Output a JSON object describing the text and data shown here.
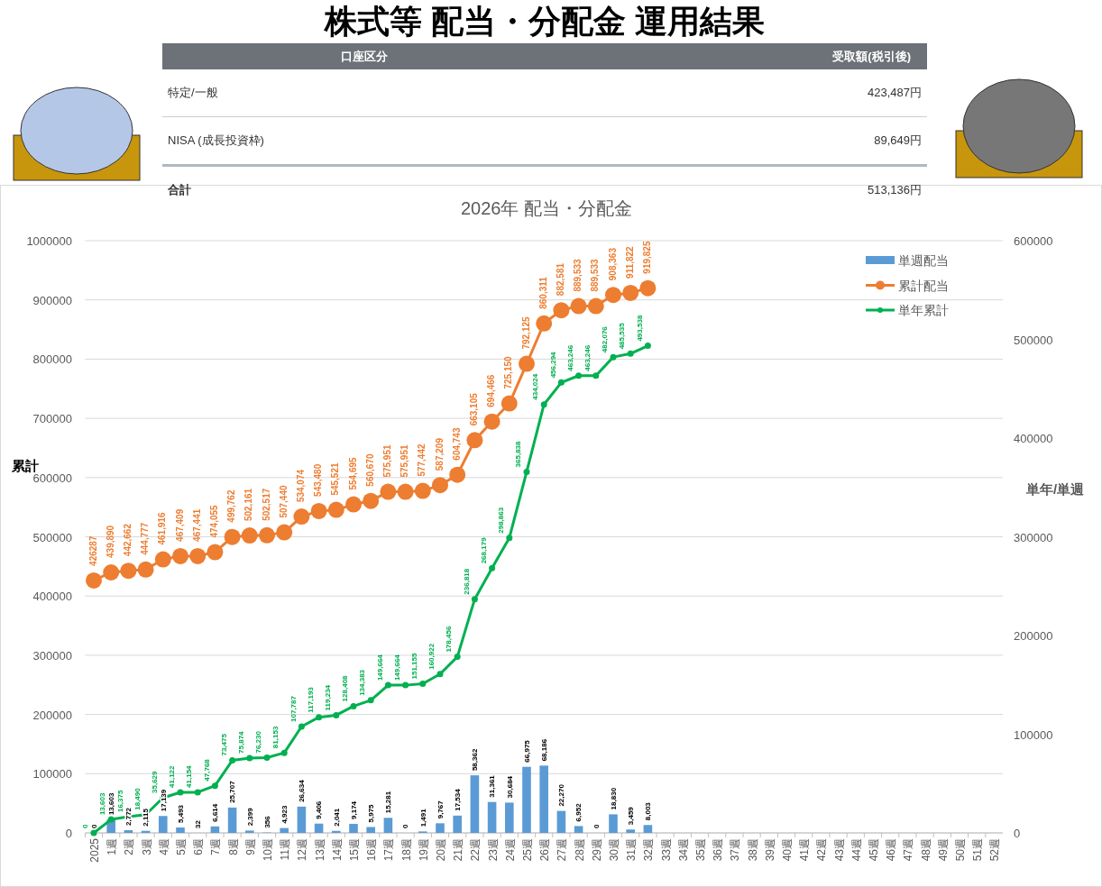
{
  "chart_data": [
    {
      "type": "other",
      "title": "株式等 配当・分配金 運用結果",
      "annotations": [
        "口座区分",
        "受取額(税引後)"
      ],
      "categories": [
        "特定/一般",
        "NISA (成長投資枠)",
        "合計"
      ],
      "value_labels": [
        "423,487円",
        "89,649円",
        "513,136円"
      ]
    },
    {
      "type": "bar",
      "title": "2026年 配当・分配金",
      "ylabel": "累計",
      "y2label": "単年/単週",
      "categories": [
        "2025",
        "1週",
        "2週",
        "3週",
        "4週",
        "5週",
        "6週",
        "7週",
        "8週",
        "9週",
        "10週",
        "11週",
        "12週",
        "13週",
        "14週",
        "15週",
        "16週",
        "17週",
        "18週",
        "19週",
        "20週",
        "21週",
        "22週",
        "23週",
        "24週",
        "25週",
        "26週",
        "27週",
        "28週",
        "29週",
        "30週",
        "31週",
        "32週",
        "33週",
        "34週",
        "35週",
        "36週",
        "37週",
        "38週",
        "39週",
        "40週",
        "41週",
        "42週",
        "43週",
        "44週",
        "45週",
        "46週",
        "47週",
        "48週",
        "49週",
        "50週",
        "51週",
        "52週"
      ],
      "ylim": [
        0,
        1000000
      ],
      "yticks": [
        0,
        100000,
        200000,
        300000,
        400000,
        500000,
        600000,
        700000,
        800000,
        900000,
        1000000
      ],
      "y2lim": [
        0,
        600000
      ],
      "y2ticks": [
        0,
        100000,
        200000,
        300000,
        400000,
        500000,
        600000
      ],
      "grid": "y",
      "legend": "top right",
      "marker": "circle",
      "series": [
        {
          "name": "単週配当",
          "axis": "y2",
          "color": "#5b9bd5",
          "values": [
            0,
            13603,
            2772,
            2115,
            17139,
            5493,
            32,
            6614,
            25707,
            2399,
            356,
            4923,
            26634,
            9406,
            2041,
            9174,
            5975,
            15281,
            0,
            1491,
            9767,
            17534,
            58362,
            31361,
            30684,
            66975,
            68186,
            22270,
            6952,
            0,
            18830,
            3459,
            8003,
            null,
            null,
            null,
            null,
            null,
            null,
            null,
            null,
            null,
            null,
            null,
            null,
            null,
            null,
            null,
            null,
            null,
            null,
            null,
            null
          ],
          "value_labels": [
            "0",
            "13,603",
            "2,772",
            "2,115",
            "17,139",
            "5,493",
            "32",
            "6,614",
            "25,707",
            "2,399",
            "356",
            "4,923",
            "26,634",
            "9,406",
            "2,041",
            "9,174",
            "5,975",
            "15,281",
            "0",
            "1,491",
            "9,767",
            "17,534",
            "58,362",
            "31,361",
            "30,684",
            "66,975",
            "68,186",
            "22,270",
            "6,952",
            "0",
            "18,830",
            "3,459",
            "8,003",
            null,
            null,
            null,
            null,
            null,
            null,
            null,
            null,
            null,
            null,
            null,
            null,
            null,
            null,
            null,
            null,
            null,
            null,
            null,
            null
          ]
        },
        {
          "name": "累計配当",
          "type": "line",
          "color": "#ed7d31",
          "values": [
            426287,
            439890,
            442662,
            444777,
            461916,
            467409,
            467441,
            474055,
            499762,
            502161,
            502517,
            507440,
            534074,
            543480,
            545521,
            554695,
            560670,
            575951,
            575951,
            577442,
            587209,
            604743,
            663105,
            694466,
            725150,
            792125,
            860311,
            882581,
            889533,
            889533,
            908363,
            911822,
            919825,
            null,
            null,
            null,
            null,
            null,
            null,
            null,
            null,
            null,
            null,
            null,
            null,
            null,
            null,
            null,
            null,
            null,
            null,
            null,
            null
          ],
          "value_labels": [
            "426287",
            "439,890",
            "442,662",
            "444,777",
            "461,916",
            "467,409",
            "467,441",
            "474,055",
            "499,762",
            "502,161",
            "502,517",
            "507,440",
            "534,074",
            "543,480",
            "545,521",
            "554,695",
            "560,670",
            "575,951",
            "575,951",
            "577,442",
            "587,209",
            "604,743",
            "663,105",
            "694,466",
            "725,150",
            "792,125",
            "860,311",
            "882,581",
            "889,533",
            "889,533",
            "908,363",
            "911,822",
            "919,825",
            null,
            null,
            null,
            null,
            null,
            null,
            null,
            null,
            null,
            null,
            null,
            null,
            null,
            null,
            null,
            null,
            null,
            null,
            null,
            null
          ]
        },
        {
          "name": "単年累計",
          "type": "line",
          "axis": "y2",
          "color": "#00b050",
          "values": [
            0,
            13603,
            16375,
            18490,
            35629,
            41122,
            41154,
            47768,
            73475,
            75874,
            76230,
            81153,
            107787,
            117193,
            119234,
            128408,
            134383,
            149664,
            149664,
            151155,
            160922,
            178456,
            236818,
            268179,
            298863,
            365838,
            434024,
            456294,
            463246,
            463246,
            482076,
            485535,
            493538,
            null,
            null,
            null,
            null,
            null,
            null,
            null,
            null,
            null,
            null,
            null,
            null,
            null,
            null,
            null,
            null,
            null,
            null,
            null,
            null
          ],
          "value_labels": [
            "0",
            "13,603",
            "16,375",
            "18,490",
            "35,629",
            "41,122",
            "41,154",
            "47,768",
            "73,475",
            "75,874",
            "76,230",
            "81,153",
            "107,787",
            "117,193",
            "119,234",
            "128,408",
            "134,383",
            "149,664",
            "149,664",
            "151,155",
            "160,922",
            "178,456",
            "236,818",
            "268,179",
            "298,863",
            "365,838",
            "434,024",
            "456,294",
            "463,246",
            "463,246",
            "482,076",
            "485,535",
            "493,538",
            null,
            null,
            null,
            null,
            null,
            null,
            null,
            null,
            null,
            null,
            null,
            null,
            null,
            null,
            null,
            null,
            null,
            null,
            null,
            null
          ]
        }
      ]
    }
  ]
}
